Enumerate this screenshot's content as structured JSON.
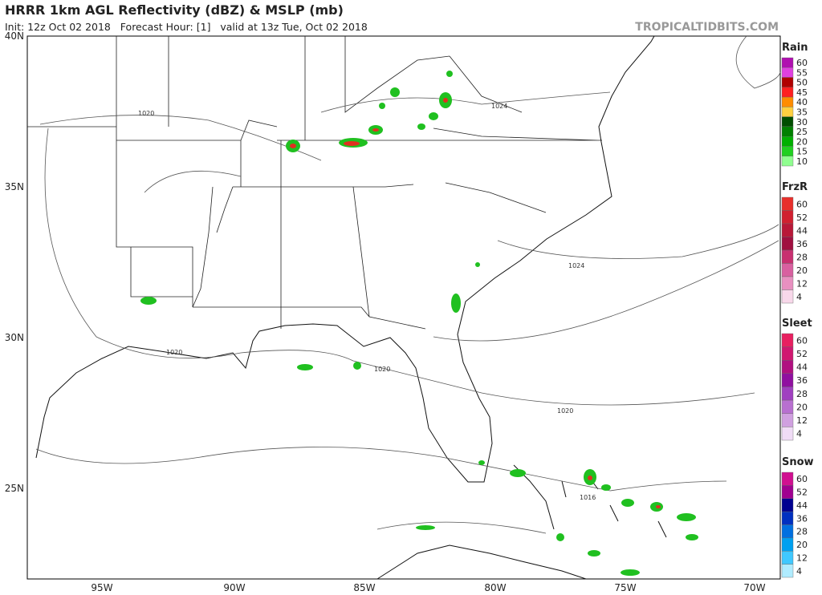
{
  "header": {
    "title": "HRRR 1km AGL Reflectivity (dBZ) & MSLP (mb)",
    "subtitle": "Init: 12z Oct 02 2018   Forecast Hour: [1]   valid at 13z Tue, Oct 02 2018",
    "source": "TROPICALTIDBITS.COM"
  },
  "map": {
    "lat_labels": [
      "40N",
      "35N",
      "30N",
      "25N"
    ],
    "lon_labels": [
      "95W",
      "90W",
      "85W",
      "80W",
      "75W",
      "70W"
    ],
    "isobar_labels": [
      "1020",
      "1024",
      "1024",
      "1020",
      "1020",
      "1020",
      "1016"
    ]
  },
  "legends": [
    {
      "title": "Rain",
      "labels": [
        "60",
        "55",
        "50",
        "45",
        "40",
        "35",
        "30",
        "25",
        "20",
        "15",
        "10"
      ],
      "colors": [
        "#b010b0",
        "#e040e0",
        "#b00000",
        "#ff2020",
        "#ff8c00",
        "#ffd040",
        "#004d00",
        "#008000",
        "#00b000",
        "#20d020",
        "#90ff90"
      ]
    },
    {
      "title": "FrzR",
      "labels": [
        "60",
        "52",
        "44",
        "36",
        "28",
        "20",
        "12",
        "4"
      ],
      "colors": [
        "#e8302c",
        "#d02030",
        "#b81838",
        "#a01040",
        "#c83070",
        "#d860a0",
        "#e890c0",
        "#f8d8ea"
      ]
    },
    {
      "title": "Sleet",
      "labels": [
        "60",
        "52",
        "44",
        "36",
        "28",
        "20",
        "12",
        "4"
      ],
      "colors": [
        "#e82060",
        "#d01870",
        "#b01080",
        "#9010a0",
        "#a040c0",
        "#b870d0",
        "#d0a0e0",
        "#f0dcf6"
      ]
    },
    {
      "title": "Snow",
      "labels": [
        "60",
        "52",
        "44",
        "36",
        "28",
        "20",
        "12",
        "4"
      ],
      "colors": [
        "#d01090",
        "#a00090",
        "#000090",
        "#0030c0",
        "#0070e0",
        "#00a0f0",
        "#40c8ff",
        "#b0ecff"
      ]
    }
  ]
}
